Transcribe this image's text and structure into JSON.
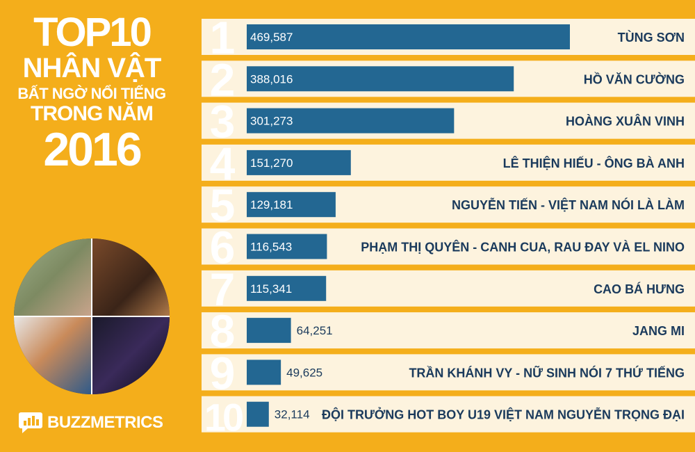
{
  "title": {
    "line1": "TOP10",
    "line2": "NHÂN VẬT",
    "line3": "BẤT NGỜ NỔI TIẾNG",
    "line4": "TRONG NĂM",
    "line5": "2016"
  },
  "brand": {
    "name": "BUZZMETRICS",
    "icon": "bar-chart-speech-icon"
  },
  "colors": {
    "background": "#f4ae1b",
    "bar": "#236792",
    "row": "#fdf3de",
    "rank": "#ffffff",
    "name_text": "#1a3a5c"
  },
  "chart_data": {
    "type": "bar",
    "orientation": "horizontal",
    "ranks": [
      "1",
      "2",
      "3",
      "4",
      "5",
      "6",
      "7",
      "8",
      "9",
      "10"
    ],
    "categories": [
      "TÙNG SƠN",
      "HỒ VĂN CƯỜNG",
      "HOÀNG XUÂN VINH",
      "LÊ THIỆN HIẾU - ÔNG BÀ ANH",
      "NGUYỄN TIẾN - VIỆT NAM NÓI LÀ LÀM",
      "PHẠM THỊ QUYÊN - CANH CUA, RAU ĐAY VÀ EL NINO",
      "CAO BÁ HƯNG",
      "JANG MI",
      "TRẦN KHÁNH VY - NỮ SINH NÓI 7 THỨ TIẾNG",
      "ĐỘI TRƯỞNG HOT BOY U19 VIỆT NAM NGUYỄN TRỌNG ĐẠI"
    ],
    "values": [
      469587,
      388016,
      301273,
      151270,
      129181,
      116543,
      115341,
      64251,
      49625,
      32114
    ],
    "value_labels": [
      "469,587",
      "388,016",
      "301,273",
      "151,270",
      "129,181",
      "116,543",
      "115,341",
      "64,251",
      "49,625",
      "32,114"
    ]
  }
}
